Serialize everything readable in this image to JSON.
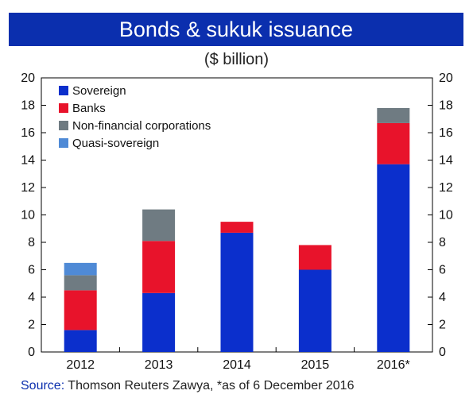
{
  "chart_data": {
    "type": "bar",
    "stacked": true,
    "title": "Bonds & sukuk issuance",
    "subtitle": "($ billion)",
    "categories": [
      "2012",
      "2013",
      "2014",
      "2015",
      "2016*"
    ],
    "series": [
      {
        "name": "Sovereign",
        "color": "#0b2fcc",
        "values": [
          1.6,
          4.3,
          8.7,
          6.0,
          13.7
        ]
      },
      {
        "name": "Banks",
        "color": "#e8132b",
        "values": [
          2.9,
          3.8,
          0.8,
          1.8,
          3.0
        ]
      },
      {
        "name": "Non-financial corporations",
        "color": "#6f7b82",
        "values": [
          1.1,
          2.3,
          0.0,
          0.0,
          1.1
        ]
      },
      {
        "name": "Quasi-sovereign",
        "color": "#4f8ad6",
        "values": [
          0.9,
          0.0,
          0.0,
          0.0,
          0.0
        ]
      }
    ],
    "ylim": [
      0,
      20
    ],
    "yticks": [
      0,
      2,
      4,
      6,
      8,
      10,
      12,
      14,
      16,
      18,
      20
    ],
    "legend_position": "top-left",
    "grid": false
  },
  "source": {
    "label": "Source:",
    "text": " Thomson Reuters Zawya, *as of 6 December 2016"
  }
}
